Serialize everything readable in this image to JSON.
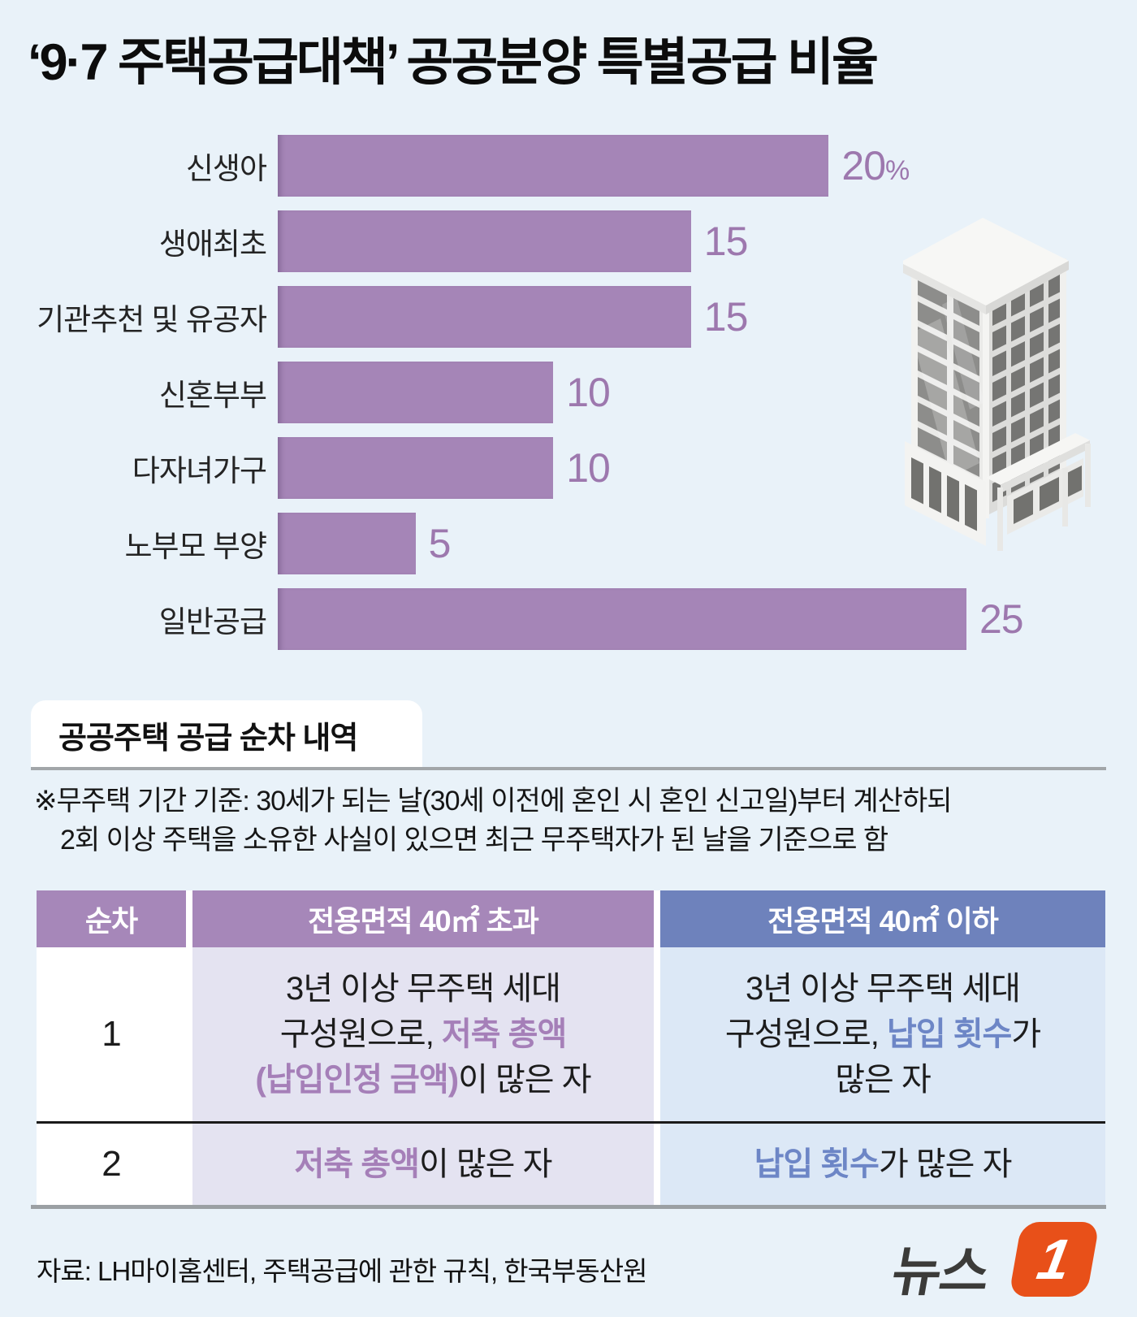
{
  "page": {
    "title": "‘9·7 주택공급대책’ 공공분양 특별공급 비율"
  },
  "chart_data": {
    "type": "bar",
    "orientation": "horizontal",
    "title": "공공분양 특별공급 비율",
    "categories": [
      "신생아",
      "생애최초",
      "기관추천 및 유공자",
      "신혼부부",
      "다자녀가구",
      "노부모 부양",
      "일반공급"
    ],
    "values": [
      20,
      15,
      15,
      10,
      10,
      5,
      25
    ],
    "value_labels": [
      "20%",
      "15",
      "15",
      "10",
      "10",
      "5",
      "25"
    ],
    "unit": "%",
    "xlim": [
      0,
      25
    ],
    "grid": false,
    "legend": "none",
    "bar_color": "#a585b7",
    "value_color": "#9d78ae"
  },
  "section": {
    "header": "공공주택 공급 순차 내역"
  },
  "note": {
    "line1": "※무주택 기간 기준: 30세가 되는 날(30세 이전에 혼인 시 혼인 신고일)부터 계산하되",
    "line2": "2회 이상 주택을 소유한 사실이 있으면 최근 무주택자가 된 날을 기준으로 함"
  },
  "table": {
    "headers": [
      "순차",
      "전용면적 40㎡ 초과",
      "전용면적 40㎡ 이하"
    ],
    "rows": [
      {
        "seq": "1",
        "over40": [
          {
            "t": "3년 이상 무주택 세대",
            "c": "black"
          },
          {
            "br": true
          },
          {
            "t": "구성원으로, ",
            "c": "black"
          },
          {
            "t": "저축 총액",
            "c": "purple"
          },
          {
            "br": true
          },
          {
            "t": "(납입인정 금액)",
            "c": "purple"
          },
          {
            "t": "이 많은 자",
            "c": "black"
          }
        ],
        "under40": [
          {
            "t": "3년 이상 무주택 세대",
            "c": "black"
          },
          {
            "br": true
          },
          {
            "t": "구성원으로, ",
            "c": "black"
          },
          {
            "t": "납입 횟수",
            "c": "blue"
          },
          {
            "t": "가",
            "c": "black"
          },
          {
            "br": true
          },
          {
            "t": "많은 자",
            "c": "black"
          }
        ]
      },
      {
        "seq": "2",
        "over40": [
          {
            "t": "저축 총액",
            "c": "purple"
          },
          {
            "t": "이 많은 자",
            "c": "black"
          }
        ],
        "under40": [
          {
            "t": "납입 횟수",
            "c": "blue"
          },
          {
            "t": "가 많은 자",
            "c": "black"
          }
        ]
      }
    ]
  },
  "footer": {
    "source": "자료: LH마이홈센터, 주택공급에 관한 규칙, 한국부동산원",
    "logo_text": "뉴스",
    "logo_number": "1"
  },
  "colors": {
    "background": "#e9f2f9",
    "bar": "#a585b7",
    "value_text": "#9d78ae",
    "header_purple": "#a687b9",
    "header_blue": "#6e82bc",
    "cell_lavender": "#e4e3f1",
    "cell_light_blue": "#dce8f6",
    "accent_purple": "#a57fb8",
    "accent_blue": "#6d86c6",
    "rule_gray": "#9ba0a4",
    "logo_orange": "#e85019"
  }
}
